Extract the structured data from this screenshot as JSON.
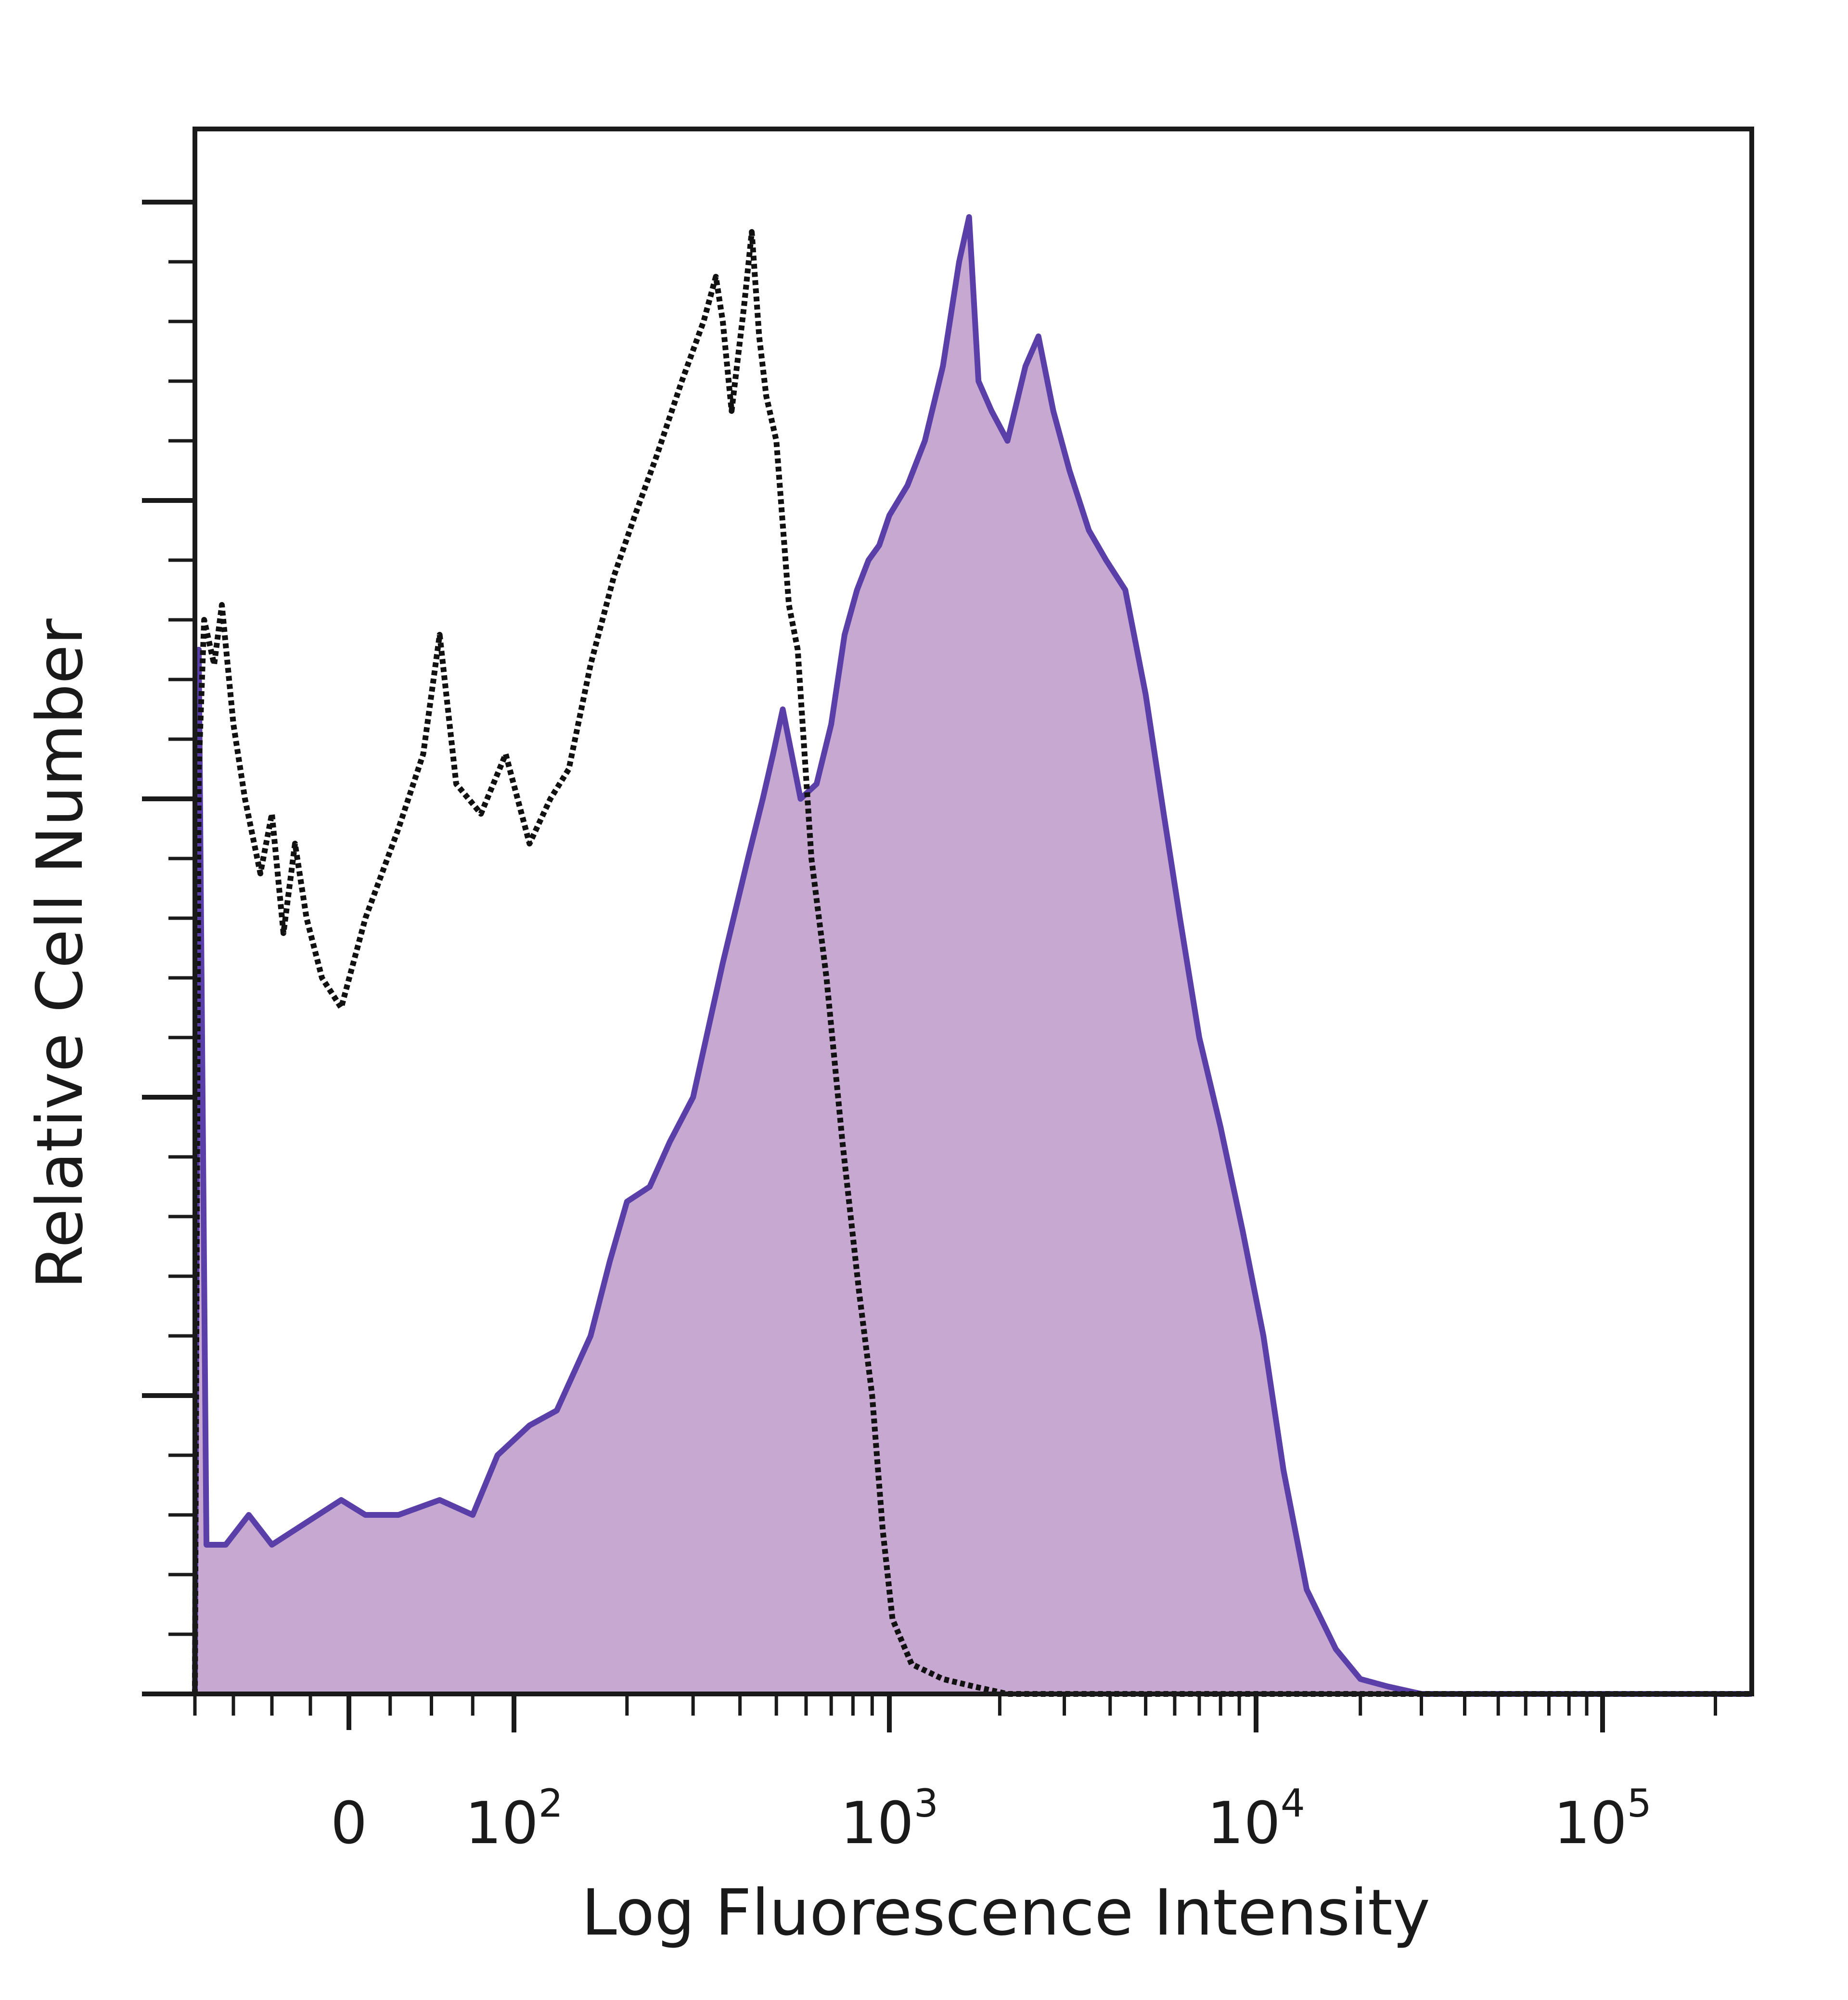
{
  "chart_data": {
    "type": "area",
    "title": "",
    "xlabel": "Log Fluorescence Intensity",
    "ylabel": "Relative Cell Number",
    "x_scale": "biexponential",
    "xlim": [
      -200,
      250000
    ],
    "ylim": [
      0,
      100
    ],
    "grid": false,
    "legend": "none",
    "x_tick_labels": [
      {
        "value": 0,
        "label": "0"
      },
      {
        "value": 100,
        "label": "10",
        "sup": "2"
      },
      {
        "value": 1000,
        "label": "10",
        "sup": "3"
      },
      {
        "value": 10000,
        "label": "10",
        "sup": "4"
      },
      {
        "value": 100000,
        "label": "10",
        "sup": "5"
      }
    ],
    "series": [
      {
        "style": "filled",
        "fill": "#c6a8d1",
        "stroke": "#5b3fa8",
        "points": [
          [
            -200,
            0
          ],
          [
            -195,
            70
          ],
          [
            -185,
            10
          ],
          [
            -160,
            10
          ],
          [
            -130,
            12
          ],
          [
            -100,
            10
          ],
          [
            -70,
            11
          ],
          [
            -40,
            12
          ],
          [
            -10,
            13
          ],
          [
            10,
            12
          ],
          [
            30,
            12
          ],
          [
            55,
            13
          ],
          [
            75,
            12
          ],
          [
            90,
            16
          ],
          [
            110,
            18
          ],
          [
            130,
            19
          ],
          [
            160,
            24
          ],
          [
            180,
            29
          ],
          [
            200,
            33
          ],
          [
            230,
            34
          ],
          [
            260,
            37
          ],
          [
            300,
            40
          ],
          [
            360,
            49
          ],
          [
            420,
            56
          ],
          [
            460,
            60
          ],
          [
            490,
            63
          ],
          [
            520,
            66
          ],
          [
            580,
            60
          ],
          [
            640,
            61
          ],
          [
            700,
            65
          ],
          [
            760,
            71
          ],
          [
            820,
            74
          ],
          [
            880,
            76
          ],
          [
            940,
            77
          ],
          [
            1000,
            79
          ],
          [
            1120,
            81
          ],
          [
            1250,
            84
          ],
          [
            1400,
            89
          ],
          [
            1550,
            96
          ],
          [
            1650,
            99
          ],
          [
            1750,
            88
          ],
          [
            1900,
            86
          ],
          [
            2100,
            84
          ],
          [
            2350,
            89
          ],
          [
            2550,
            91
          ],
          [
            2800,
            86
          ],
          [
            3100,
            82
          ],
          [
            3500,
            78
          ],
          [
            3900,
            76
          ],
          [
            4400,
            74
          ],
          [
            5000,
            67
          ],
          [
            5600,
            59
          ],
          [
            6200,
            52
          ],
          [
            7000,
            44
          ],
          [
            8000,
            38
          ],
          [
            9200,
            31
          ],
          [
            10500,
            24
          ],
          [
            12000,
            15
          ],
          [
            14000,
            7
          ],
          [
            17000,
            3
          ],
          [
            20000,
            1
          ],
          [
            24000,
            0.5
          ],
          [
            30000,
            0
          ],
          [
            250000,
            0
          ]
        ]
      },
      {
        "style": "dotted",
        "stroke": "#111111",
        "points": [
          [
            -200,
            0
          ],
          [
            -195,
            62
          ],
          [
            -188,
            72
          ],
          [
            -175,
            69
          ],
          [
            -165,
            73
          ],
          [
            -150,
            65
          ],
          [
            -135,
            60
          ],
          [
            -115,
            55
          ],
          [
            -100,
            59
          ],
          [
            -85,
            51
          ],
          [
            -70,
            57
          ],
          [
            -55,
            52
          ],
          [
            -35,
            48
          ],
          [
            -10,
            46
          ],
          [
            10,
            52
          ],
          [
            30,
            58
          ],
          [
            45,
            63
          ],
          [
            55,
            71
          ],
          [
            65,
            61
          ],
          [
            80,
            59
          ],
          [
            95,
            63
          ],
          [
            110,
            57
          ],
          [
            125,
            60
          ],
          [
            140,
            62
          ],
          [
            160,
            69
          ],
          [
            185,
            75
          ],
          [
            210,
            79
          ],
          [
            240,
            83
          ],
          [
            280,
            88
          ],
          [
            320,
            92
          ],
          [
            345,
            95
          ],
          [
            360,
            92
          ],
          [
            380,
            86
          ],
          [
            410,
            93
          ],
          [
            430,
            98
          ],
          [
            450,
            91
          ],
          [
            470,
            87
          ],
          [
            500,
            84
          ],
          [
            540,
            73
          ],
          [
            570,
            70
          ],
          [
            620,
            56
          ],
          [
            680,
            48
          ],
          [
            750,
            37
          ],
          [
            830,
            27
          ],
          [
            900,
            20
          ],
          [
            960,
            11
          ],
          [
            1020,
            5
          ],
          [
            1150,
            2
          ],
          [
            1400,
            1
          ],
          [
            1700,
            0.5
          ],
          [
            2100,
            0
          ],
          [
            250000,
            0
          ]
        ]
      }
    ]
  }
}
